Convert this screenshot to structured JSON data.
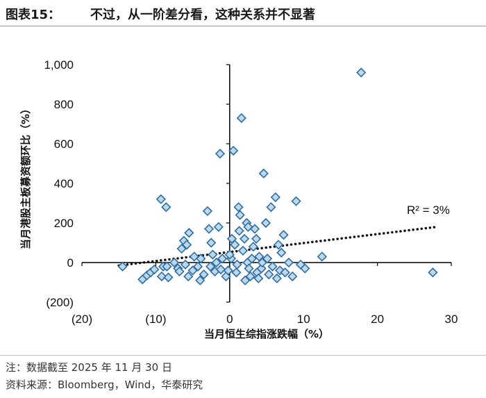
{
  "header": {
    "label": "图表15：",
    "title": "不过，从一阶差分看，这种关系并不显著"
  },
  "footer": {
    "note": "注：数据截至 2025 年 11 月 30 日",
    "source": "资料来源：Bloomberg，Wind，华泰研究"
  },
  "colors": {
    "marker_fill": "#bcd8ea",
    "marker_stroke": "#2e6da4",
    "trend": "#111111",
    "rule": "#8c96a8"
  },
  "chart_data": {
    "type": "scatter",
    "title": "不过，从一阶差分看，这种关系并不显著",
    "xlabel": "当月恒生综指涨跌幅（%）",
    "ylabel": "当月港股主板募资额环比（%）",
    "xlim": [
      -20,
      30
    ],
    "ylim": [
      -200,
      1000
    ],
    "xticks": [
      -20,
      -10,
      0,
      10,
      20,
      30
    ],
    "xtick_labels": [
      "(20)",
      "(10)",
      "0",
      "10",
      "20",
      "30"
    ],
    "yticks": [
      -200,
      0,
      200,
      400,
      600,
      800,
      1000
    ],
    "ytick_labels": [
      "(200)",
      "0",
      "200",
      "400",
      "600",
      "800",
      "1,000"
    ],
    "grid": false,
    "annotation": "R² = 3%",
    "trendline": {
      "x": [
        -15,
        28
      ],
      "y": [
        -15,
        180
      ],
      "style": "dotted"
    },
    "points": [
      [
        -14.5,
        -20
      ],
      [
        -11.8,
        -85
      ],
      [
        -11.2,
        -65
      ],
      [
        -10.7,
        -50
      ],
      [
        -10.2,
        -35
      ],
      [
        -9.3,
        320
      ],
      [
        -8.6,
        280
      ],
      [
        -9.2,
        -70
      ],
      [
        -9.0,
        -20
      ],
      [
        -8.3,
        -75
      ],
      [
        -8.5,
        -20
      ],
      [
        -7.0,
        -30
      ],
      [
        -6.8,
        -45
      ],
      [
        -6.5,
        70
      ],
      [
        -6.2,
        110
      ],
      [
        -5.8,
        90
      ],
      [
        -5.5,
        150
      ],
      [
        -5.0,
        -40
      ],
      [
        -5.6,
        -70
      ],
      [
        -4.8,
        30
      ],
      [
        -4.3,
        -20
      ],
      [
        -4.0,
        -90
      ],
      [
        -3.5,
        -60
      ],
      [
        -3.9,
        20
      ],
      [
        -3.0,
        260
      ],
      [
        -2.8,
        170
      ],
      [
        -2.5,
        100
      ],
      [
        -2.3,
        40
      ],
      [
        -2.0,
        -45
      ],
      [
        -1.8,
        0
      ],
      [
        -1.5,
        180
      ],
      [
        -1.3,
        550
      ],
      [
        -1.2,
        -35
      ],
      [
        -1.0,
        20
      ],
      [
        -0.5,
        -70
      ],
      [
        0.2,
        20
      ],
      [
        0.3,
        120
      ],
      [
        0.5,
        565
      ],
      [
        0.7,
        90
      ],
      [
        0.9,
        -50
      ],
      [
        1.0,
        -10
      ],
      [
        1.2,
        280
      ],
      [
        1.4,
        240
      ],
      [
        1.6,
        730
      ],
      [
        1.3,
        160
      ],
      [
        1.8,
        60
      ],
      [
        2.0,
        120
      ],
      [
        2.3,
        200
      ],
      [
        2.5,
        180
      ],
      [
        2.4,
        0
      ],
      [
        2.6,
        -30
      ],
      [
        2.8,
        -70
      ],
      [
        3.0,
        20
      ],
      [
        3.2,
        80
      ],
      [
        3.4,
        170
      ],
      [
        3.6,
        120
      ],
      [
        3.7,
        -50
      ],
      [
        4.0,
        30
      ],
      [
        4.3,
        -30
      ],
      [
        4.6,
        450
      ],
      [
        4.9,
        200
      ],
      [
        5.1,
        20
      ],
      [
        5.3,
        -60
      ],
      [
        5.6,
        280
      ],
      [
        5.8,
        -20
      ],
      [
        6.2,
        330
      ],
      [
        6.6,
        90
      ],
      [
        6.8,
        -40
      ],
      [
        7.0,
        50
      ],
      [
        7.3,
        140
      ],
      [
        7.5,
        -50
      ],
      [
        8.0,
        0
      ],
      [
        8.5,
        -70
      ],
      [
        9.0,
        310
      ],
      [
        9.6,
        -10
      ],
      [
        10.2,
        -30
      ],
      [
        12.5,
        30
      ],
      [
        17.8,
        960
      ],
      [
        27.5,
        -50
      ],
      [
        -0.2,
        -40
      ],
      [
        0.0,
        40
      ],
      [
        -6.0,
        -10
      ],
      [
        -2.6,
        -20
      ],
      [
        3.9,
        -80
      ],
      [
        6.4,
        -80
      ],
      [
        2.1,
        -90
      ],
      [
        -7.5,
        0
      ],
      [
        4.4,
        0
      ]
    ]
  }
}
